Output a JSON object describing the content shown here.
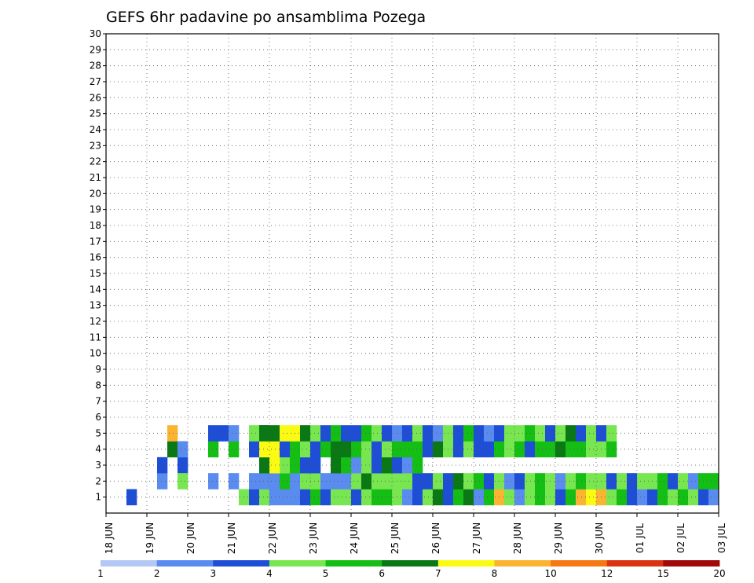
{
  "chart_data": {
    "type": "heatmap",
    "title": "GEFS 6hr padavine po ansamblima Pozega",
    "x_tick_labels": [
      "18 JUN",
      "19 JUN",
      "20 JUN",
      "21 JUN",
      "22 JUN",
      "23 JUN",
      "24 JUN",
      "25 JUN",
      "26 JUN",
      "27 JUN",
      "28 JUN",
      "29 JUN",
      "30 JUN",
      "01 JUL",
      "02 JUL",
      "03 JUL"
    ],
    "y_tick_labels": [
      "1",
      "2",
      "3",
      "4",
      "5",
      "6",
      "7",
      "8",
      "9",
      "10",
      "11",
      "12",
      "13",
      "14",
      "15",
      "16",
      "17",
      "18",
      "19",
      "20",
      "21",
      "22",
      "23",
      "24",
      "25",
      "26",
      "27",
      "28",
      "29",
      "30"
    ],
    "x_unit": "6-hour step (0 = 18 JUN 00Z)",
    "y_unit": "ensemble member",
    "xlim": [
      0,
      60
    ],
    "ylim": [
      0,
      30
    ],
    "grid": true,
    "colorbar": {
      "labels": [
        "1",
        "2",
        "3",
        "4",
        "5",
        "6",
        "7",
        "8",
        "10",
        "12",
        "15",
        "20"
      ],
      "colors": [
        "#b4c8f5",
        "#5a8cf0",
        "#1e4ed6",
        "#78e650",
        "#14be14",
        "#0a7814",
        "#fafa14",
        "#fab432",
        "#f57814",
        "#dc3214",
        "#a00a0a"
      ]
    },
    "cells": [
      [
        2,
        1,
        2
      ],
      [
        5,
        2,
        1
      ],
      [
        5,
        3,
        2
      ],
      [
        6,
        4,
        5
      ],
      [
        6,
        5,
        7
      ],
      [
        7,
        3,
        2
      ],
      [
        7,
        4,
        1
      ],
      [
        7,
        2,
        3
      ],
      [
        13,
        1,
        3
      ],
      [
        14,
        1,
        2
      ],
      [
        15,
        1,
        3
      ],
      [
        16,
        1,
        1
      ],
      [
        17,
        1,
        1
      ],
      [
        18,
        1,
        1
      ],
      [
        19,
        1,
        2
      ],
      [
        20,
        1,
        4
      ],
      [
        21,
        1,
        2
      ],
      [
        22,
        1,
        3
      ],
      [
        23,
        1,
        3
      ],
      [
        24,
        1,
        2
      ],
      [
        25,
        1,
        3
      ],
      [
        26,
        1,
        4
      ],
      [
        27,
        1,
        4
      ],
      [
        28,
        1,
        3
      ],
      [
        29,
        1,
        1
      ],
      [
        30,
        1,
        2
      ],
      [
        31,
        1,
        3
      ],
      [
        32,
        1,
        5
      ],
      [
        33,
        1,
        2
      ],
      [
        34,
        1,
        4
      ],
      [
        35,
        1,
        5
      ],
      [
        36,
        1,
        1
      ],
      [
        37,
        1,
        4
      ],
      [
        38,
        1,
        7
      ],
      [
        39,
        1,
        3
      ],
      [
        40,
        1,
        1
      ],
      [
        41,
        1,
        3
      ],
      [
        42,
        1,
        4
      ],
      [
        43,
        1,
        3
      ],
      [
        44,
        1,
        2
      ],
      [
        45,
        1,
        4
      ],
      [
        46,
        1,
        7
      ],
      [
        47,
        1,
        6
      ],
      [
        48,
        1,
        7
      ],
      [
        49,
        1,
        3
      ],
      [
        50,
        1,
        4
      ],
      [
        51,
        1,
        2
      ],
      [
        52,
        1,
        1
      ],
      [
        53,
        1,
        2
      ],
      [
        54,
        1,
        4
      ],
      [
        55,
        1,
        3
      ],
      [
        56,
        1,
        4
      ],
      [
        57,
        1,
        3
      ],
      [
        58,
        1,
        2
      ],
      [
        59,
        1,
        1
      ],
      [
        10,
        2,
        1
      ],
      [
        10,
        4,
        4
      ],
      [
        10,
        5,
        2
      ],
      [
        11,
        5,
        2
      ],
      [
        12,
        2,
        1
      ],
      [
        12,
        4,
        4
      ],
      [
        12,
        5,
        1
      ],
      [
        14,
        2,
        1
      ],
      [
        14,
        4,
        2
      ],
      [
        14,
        5,
        3
      ],
      [
        15,
        2,
        1
      ],
      [
        15,
        4,
        4
      ],
      [
        15,
        5,
        2
      ],
      [
        16,
        2,
        1
      ],
      [
        16,
        4,
        2
      ],
      [
        17,
        2,
        4
      ],
      [
        17,
        3,
        3
      ],
      [
        18,
        2,
        1
      ],
      [
        18,
        3,
        4
      ],
      [
        19,
        2,
        3
      ],
      [
        19,
        3,
        2
      ],
      [
        20,
        2,
        3
      ],
      [
        20,
        3,
        2
      ],
      [
        21,
        2,
        1
      ],
      [
        22,
        2,
        1
      ],
      [
        22,
        3,
        5
      ],
      [
        23,
        2,
        1
      ],
      [
        23,
        3,
        4
      ],
      [
        24,
        2,
        3
      ],
      [
        24,
        3,
        1
      ],
      [
        25,
        2,
        5
      ],
      [
        25,
        3,
        3
      ],
      [
        26,
        2,
        3
      ],
      [
        26,
        3,
        2
      ],
      [
        27,
        2,
        3
      ],
      [
        27,
        3,
        5
      ],
      [
        28,
        2,
        3
      ],
      [
        28,
        3,
        2
      ],
      [
        29,
        2,
        3
      ],
      [
        29,
        3,
        1
      ],
      [
        30,
        2,
        2
      ],
      [
        30,
        3,
        4
      ],
      [
        31,
        2,
        2
      ],
      [
        32,
        2,
        3
      ],
      [
        33,
        2,
        2
      ],
      [
        34,
        2,
        5
      ],
      [
        35,
        2,
        3
      ],
      [
        36,
        2,
        4
      ],
      [
        37,
        2,
        2
      ],
      [
        38,
        2,
        3
      ],
      [
        39,
        2,
        1
      ],
      [
        40,
        2,
        2
      ],
      [
        41,
        2,
        3
      ],
      [
        42,
        2,
        4
      ],
      [
        43,
        2,
        3
      ],
      [
        44,
        2,
        1
      ],
      [
        45,
        2,
        3
      ],
      [
        46,
        2,
        4
      ],
      [
        47,
        2,
        3
      ],
      [
        48,
        2,
        3
      ],
      [
        49,
        2,
        2
      ],
      [
        50,
        2,
        3
      ],
      [
        51,
        2,
        2
      ],
      [
        52,
        2,
        3
      ],
      [
        53,
        2,
        3
      ],
      [
        54,
        2,
        4
      ],
      [
        55,
        2,
        2
      ],
      [
        56,
        2,
        3
      ],
      [
        57,
        2,
        1
      ],
      [
        58,
        2,
        4
      ],
      [
        59,
        2,
        4
      ],
      [
        15,
        3,
        5
      ],
      [
        15,
        4,
        6
      ],
      [
        15,
        5,
        5
      ],
      [
        16,
        3,
        6
      ],
      [
        16,
        4,
        6
      ],
      [
        16,
        5,
        5
      ],
      [
        17,
        4,
        2
      ],
      [
        17,
        5,
        6
      ],
      [
        18,
        4,
        4
      ],
      [
        18,
        5,
        6
      ],
      [
        19,
        4,
        3
      ],
      [
        19,
        5,
        5
      ],
      [
        20,
        4,
        2
      ],
      [
        20,
        5,
        3
      ],
      [
        21,
        4,
        4
      ],
      [
        21,
        5,
        2
      ],
      [
        22,
        4,
        5
      ],
      [
        22,
        5,
        4
      ],
      [
        23,
        4,
        5
      ],
      [
        23,
        5,
        2
      ],
      [
        24,
        4,
        4
      ],
      [
        24,
        5,
        2
      ],
      [
        25,
        4,
        3
      ],
      [
        25,
        5,
        4
      ],
      [
        26,
        4,
        2
      ],
      [
        26,
        5,
        3
      ],
      [
        27,
        4,
        3
      ],
      [
        27,
        5,
        2
      ],
      [
        28,
        4,
        4
      ],
      [
        28,
        5,
        1
      ],
      [
        29,
        4,
        4
      ],
      [
        29,
        5,
        2
      ],
      [
        30,
        4,
        4
      ],
      [
        30,
        5,
        3
      ],
      [
        31,
        4,
        2
      ],
      [
        31,
        5,
        2
      ],
      [
        32,
        4,
        5
      ],
      [
        32,
        5,
        1
      ],
      [
        33,
        4,
        3
      ],
      [
        33,
        5,
        3
      ],
      [
        34,
        4,
        2
      ],
      [
        34,
        5,
        2
      ],
      [
        35,
        4,
        3
      ],
      [
        35,
        5,
        4
      ],
      [
        36,
        4,
        2
      ],
      [
        36,
        5,
        2
      ],
      [
        37,
        4,
        2
      ],
      [
        37,
        5,
        1
      ],
      [
        38,
        4,
        4
      ],
      [
        38,
        5,
        2
      ],
      [
        39,
        4,
        3
      ],
      [
        39,
        5,
        3
      ],
      [
        40,
        4,
        4
      ],
      [
        40,
        5,
        3
      ],
      [
        41,
        4,
        2
      ],
      [
        41,
        5,
        4
      ],
      [
        42,
        4,
        4
      ],
      [
        42,
        5,
        3
      ],
      [
        43,
        4,
        4
      ],
      [
        43,
        5,
        2
      ],
      [
        44,
        4,
        5
      ],
      [
        44,
        5,
        3
      ],
      [
        45,
        4,
        4
      ],
      [
        45,
        5,
        5
      ],
      [
        46,
        4,
        4
      ],
      [
        46,
        5,
        2
      ],
      [
        47,
        4,
        3
      ],
      [
        47,
        5,
        3
      ],
      [
        48,
        4,
        3
      ],
      [
        48,
        5,
        2
      ],
      [
        49,
        4,
        4
      ],
      [
        49,
        5,
        3
      ]
    ]
  }
}
